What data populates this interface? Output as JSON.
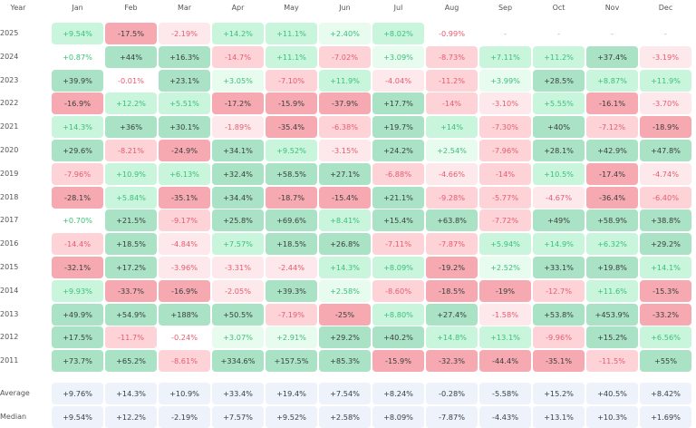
{
  "chart_data": {
    "type": "heatmap",
    "corner_label": "Year",
    "columns": [
      "Jan",
      "Feb",
      "Mar",
      "Apr",
      "May",
      "Jun",
      "Jul",
      "Aug",
      "Sep",
      "Oct",
      "Nov",
      "Dec"
    ],
    "rows": [
      {
        "year": "2025",
        "values": [
          "+9.54%",
          "-17.5%",
          "-2.19%",
          "+14.2%",
          "+11.1%",
          "+2.40%",
          "+8.02%",
          "-0.99%",
          "-",
          "-",
          "-",
          "-"
        ]
      },
      {
        "year": "2024",
        "values": [
          "+0.87%",
          "+44%",
          "+16.3%",
          "-14.7%",
          "+11.1%",
          "-7.02%",
          "+3.09%",
          "-8.73%",
          "+7.11%",
          "+11.2%",
          "+37.4%",
          "-3.19%"
        ]
      },
      {
        "year": "2023",
        "values": [
          "+39.9%",
          "-0.01%",
          "+23.1%",
          "+3.05%",
          "-7.10%",
          "+11.9%",
          "-4.04%",
          "-11.2%",
          "+3.99%",
          "+28.5%",
          "+8.87%",
          "+11.9%"
        ]
      },
      {
        "year": "2022",
        "values": [
          "-16.9%",
          "+12.2%",
          "+5.51%",
          "-17.2%",
          "-15.9%",
          "-37.9%",
          "+17.7%",
          "-14%",
          "-3.10%",
          "+5.55%",
          "-16.1%",
          "-3.70%"
        ]
      },
      {
        "year": "2021",
        "values": [
          "+14.3%",
          "+36%",
          "+30.1%",
          "-1.89%",
          "-35.4%",
          "-6.38%",
          "+19.7%",
          "+14%",
          "-7.30%",
          "+40%",
          "-7.12%",
          "-18.9%"
        ]
      },
      {
        "year": "2020",
        "values": [
          "+29.6%",
          "-8.21%",
          "-24.9%",
          "+34.1%",
          "+9.52%",
          "-3.15%",
          "+24.2%",
          "+2.54%",
          "-7.96%",
          "+28.1%",
          "+42.9%",
          "+47.8%"
        ]
      },
      {
        "year": "2019",
        "values": [
          "-7.96%",
          "+10.9%",
          "+6.13%",
          "+32.4%",
          "+58.5%",
          "+27.1%",
          "-6.88%",
          "-4.66%",
          "-14%",
          "+10.5%",
          "-17.4%",
          "-4.74%"
        ]
      },
      {
        "year": "2018",
        "values": [
          "-28.1%",
          "+5.84%",
          "-35.1%",
          "+34.4%",
          "-18.7%",
          "-15.4%",
          "+21.1%",
          "-9.28%",
          "-5.77%",
          "-4.67%",
          "-36.4%",
          "-6.40%"
        ]
      },
      {
        "year": "2017",
        "values": [
          "+0.70%",
          "+21.5%",
          "-9.17%",
          "+25.8%",
          "+69.6%",
          "+8.41%",
          "+15.4%",
          "+63.8%",
          "-7.72%",
          "+49%",
          "+58.9%",
          "+38.8%"
        ]
      },
      {
        "year": "2016",
        "values": [
          "-14.4%",
          "+18.5%",
          "-4.84%",
          "+7.57%",
          "+18.5%",
          "+26.8%",
          "-7.11%",
          "-7.87%",
          "+5.94%",
          "+14.9%",
          "+6.32%",
          "+29.2%"
        ]
      },
      {
        "year": "2015",
        "values": [
          "-32.1%",
          "+17.2%",
          "-3.96%",
          "-3.31%",
          "-2.44%",
          "+14.3%",
          "+8.09%",
          "-19.2%",
          "+2.52%",
          "+33.1%",
          "+19.8%",
          "+14.1%"
        ]
      },
      {
        "year": "2014",
        "values": [
          "+9.93%",
          "-33.7%",
          "-16.9%",
          "-2.05%",
          "+39.3%",
          "+2.58%",
          "-8.60%",
          "-18.5%",
          "-19%",
          "-12.7%",
          "+11.6%",
          "-15.3%"
        ]
      },
      {
        "year": "2013",
        "values": [
          "+49.9%",
          "+54.9%",
          "+188%",
          "+50.5%",
          "-7.19%",
          "-25%",
          "+8.80%",
          "+27.4%",
          "-1.58%",
          "+53.8%",
          "+453.9%",
          "-33.2%"
        ]
      },
      {
        "year": "2012",
        "values": [
          "+17.5%",
          "-11.7%",
          "-0.24%",
          "+3.07%",
          "+2.91%",
          "+29.2%",
          "+40.2%",
          "+14.8%",
          "+13.1%",
          "-9.96%",
          "+15.2%",
          "+6.56%"
        ]
      },
      {
        "year": "2011",
        "values": [
          "+73.7%",
          "+65.2%",
          "-8.61%",
          "+334.6%",
          "+157.5%",
          "+85.3%",
          "-15.9%",
          "-32.3%",
          "-44.4%",
          "-35.1%",
          "-11.5%",
          "+55%"
        ]
      }
    ],
    "summary": [
      {
        "label": "Average",
        "values": [
          "+9.76%",
          "+14.3%",
          "+10.9%",
          "+33.4%",
          "+19.4%",
          "+7.54%",
          "+8.24%",
          "-0.28%",
          "-5.58%",
          "+15.2%",
          "+40.5%",
          "+8.42%"
        ]
      },
      {
        "label": "Median",
        "values": [
          "+9.54%",
          "+12.2%",
          "-2.19%",
          "+7.57%",
          "+9.52%",
          "+2.58%",
          "+8.09%",
          "-7.87%",
          "-4.43%",
          "+13.1%",
          "+10.3%",
          "+1.69%"
        ]
      }
    ],
    "colors": {
      "positive_strong": "#a9e2c5",
      "positive": "#c9f5dc",
      "positive_weak": "#e8fbef",
      "negative_strong": "#f7a9b1",
      "negative": "#fdd3d8",
      "negative_weak": "#fde9eb",
      "positive_text": "#3cc07a",
      "negative_text": "#ea5a6e",
      "strong_text": "#3a3f3c",
      "summary_bg": "#eef2fa"
    }
  }
}
